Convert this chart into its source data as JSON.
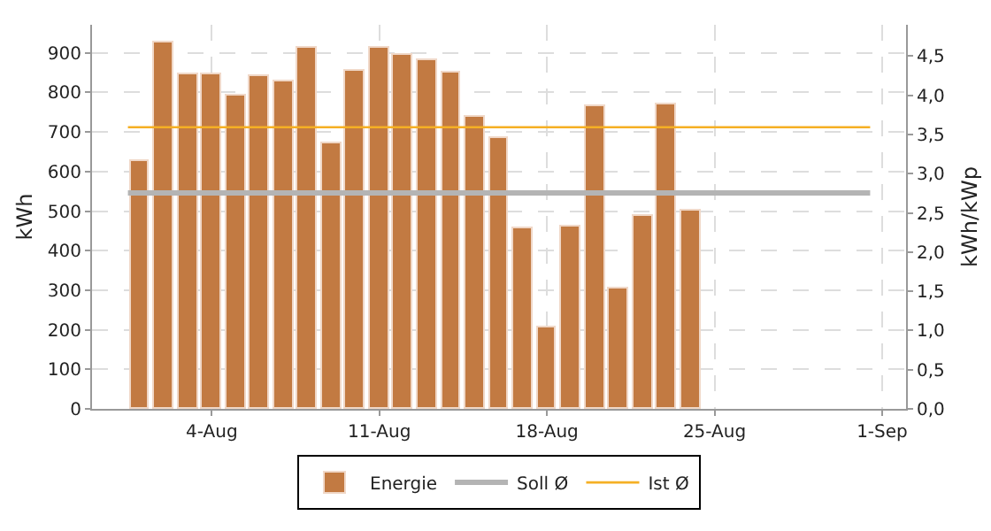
{
  "chart_data": {
    "type": "bar",
    "xlabel": null,
    "ylabel": "kWh",
    "y2label": "kWh/kWp",
    "x": [
      "--08-01",
      "--08-02",
      "--08-03",
      "--08-04",
      "--08-05",
      "--08-06",
      "--08-07",
      "--08-08",
      "--08-09",
      "--08-10",
      "--08-11",
      "--08-12",
      "--08-13",
      "--08-14",
      "--08-15",
      "--08-16",
      "--08-17",
      "--08-18",
      "--08-19",
      "--08-20",
      "--08-21",
      "--08-22",
      "--08-23",
      "--08-24"
    ],
    "series": [
      {
        "name": "Energie",
        "color": "#c27a42",
        "values": [
          625,
          928,
          847,
          845,
          792,
          840,
          828,
          913,
          670,
          855,
          913,
          897,
          880,
          848,
          740,
          686,
          457,
          204,
          462,
          767,
          305,
          487,
          768,
          503
        ]
      },
      {
        "name": "Soll Ø",
        "type": "line",
        "color": "#b4b4b4",
        "x": [
          "--07-31T12:00",
          "--08-31T12:00"
        ],
        "values": [
          546,
          546
        ]
      },
      {
        "name": "Ist Ø",
        "type": "line",
        "color": "#f5b024",
        "x": [
          "--07-31T12:00",
          "--08-31T12:00"
        ],
        "values": [
          712,
          712
        ]
      }
    ],
    "xlim": [
      "--07-30",
      "--09-02"
    ],
    "xticks": [
      {
        "value": "--08-04",
        "label": "4-Aug"
      },
      {
        "value": "--08-11",
        "label": "11-Aug"
      },
      {
        "value": "--08-18",
        "label": "18-Aug"
      },
      {
        "value": "--08-25",
        "label": "25-Aug"
      },
      {
        "value": "--09-01",
        "label": "1-Sep"
      }
    ],
    "ylim": [
      0,
      971
    ],
    "yticks": [
      0,
      100,
      200,
      300,
      400,
      500,
      600,
      700,
      800,
      900
    ],
    "y2lim": [
      0,
      4.9
    ],
    "y2ticks": [
      {
        "value": 0,
        "label": "0,0"
      },
      {
        "value": 0.5,
        "label": "0,5"
      },
      {
        "value": 1,
        "label": "1,0"
      },
      {
        "value": 1.5,
        "label": "1,5"
      },
      {
        "value": 2,
        "label": "2,0"
      },
      {
        "value": 2.5,
        "label": "2,5"
      },
      {
        "value": 3,
        "label": "3,0"
      },
      {
        "value": 3.5,
        "label": "3,5"
      },
      {
        "value": 4,
        "label": "4,0"
      },
      {
        "value": 4.5,
        "label": "4,5"
      }
    ],
    "grid": true,
    "legend": "bottom"
  }
}
